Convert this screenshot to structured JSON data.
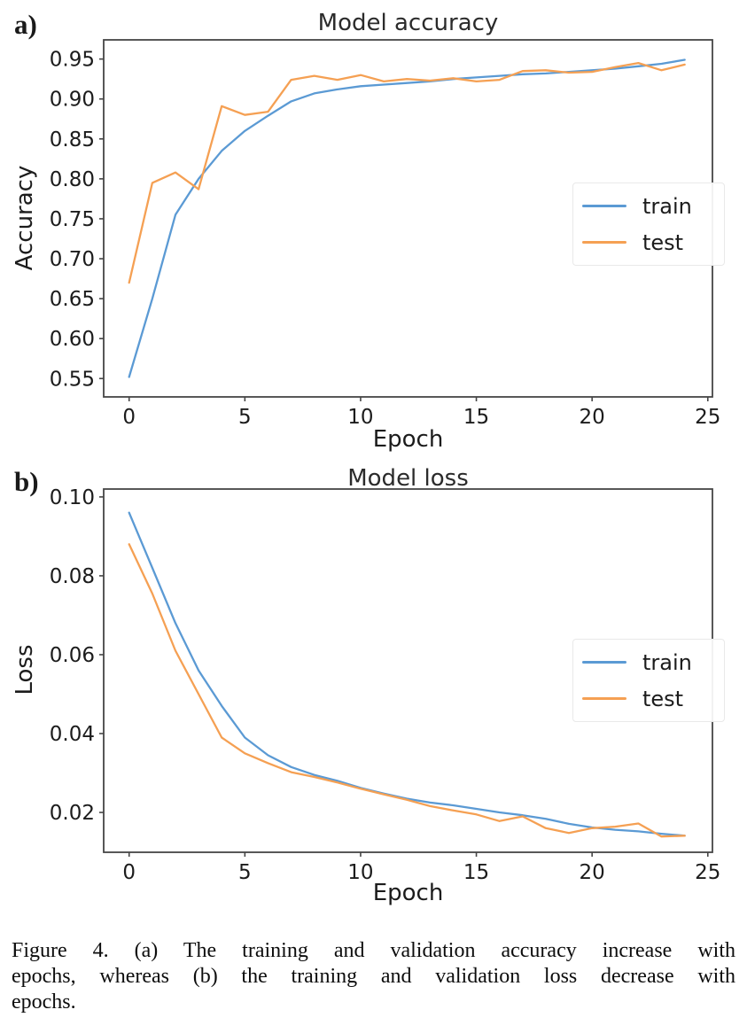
{
  "figure": {
    "panel_a_label": "a)",
    "panel_b_label": "b)"
  },
  "colors": {
    "train_line": "#5b9ad4",
    "test_line": "#f5a053",
    "spine": "#454545",
    "tick_text": "#1c1c1c"
  },
  "chart_data": [
    {
      "type": "line",
      "title": "Model accuracy",
      "xlabel": "Epoch",
      "ylabel": "Accuracy",
      "x": [
        0,
        1,
        2,
        3,
        4,
        5,
        6,
        7,
        8,
        9,
        10,
        11,
        12,
        13,
        14,
        15,
        16,
        17,
        18,
        19,
        20,
        21,
        22,
        23,
        24
      ],
      "series": [
        {
          "name": "train",
          "color": "#5b9ad4",
          "values": [
            0.552,
            0.65,
            0.755,
            0.8,
            0.835,
            0.86,
            0.879,
            0.897,
            0.907,
            0.912,
            0.916,
            0.918,
            0.92,
            0.922,
            0.925,
            0.927,
            0.929,
            0.931,
            0.932,
            0.934,
            0.936,
            0.938,
            0.941,
            0.944,
            0.949
          ]
        },
        {
          "name": "test",
          "color": "#f5a053",
          "values": [
            0.67,
            0.795,
            0.808,
            0.787,
            0.891,
            0.88,
            0.884,
            0.924,
            0.929,
            0.924,
            0.93,
            0.922,
            0.925,
            0.923,
            0.926,
            0.922,
            0.924,
            0.935,
            0.936,
            0.933,
            0.934,
            0.94,
            0.945,
            0.936,
            0.943
          ]
        }
      ],
      "xlim": [
        -1.1,
        25.2
      ],
      "ylim": [
        0.527,
        0.974
      ],
      "xticks": [
        0,
        5,
        10,
        15,
        20,
        25
      ],
      "yticks": [
        0.55,
        0.6,
        0.65,
        0.7,
        0.75,
        0.8,
        0.85,
        0.9,
        0.95
      ],
      "ytick_decimals": 2,
      "grid": false,
      "legend": {
        "position": "center-right",
        "entries": [
          "train",
          "test"
        ]
      }
    },
    {
      "type": "line",
      "title": "Model loss",
      "xlabel": "Epoch",
      "ylabel": "Loss",
      "x": [
        0,
        1,
        2,
        3,
        4,
        5,
        6,
        7,
        8,
        9,
        10,
        11,
        12,
        13,
        14,
        15,
        16,
        17,
        18,
        19,
        20,
        21,
        22,
        23,
        24
      ],
      "series": [
        {
          "name": "train",
          "color": "#5b9ad4",
          "values": [
            0.096,
            0.082,
            0.068,
            0.056,
            0.047,
            0.039,
            0.0345,
            0.0315,
            0.0295,
            0.028,
            0.0262,
            0.0248,
            0.0235,
            0.0225,
            0.0218,
            0.0209,
            0.02,
            0.0193,
            0.0184,
            0.0171,
            0.0162,
            0.0156,
            0.0152,
            0.0146,
            0.0141
          ]
        },
        {
          "name": "test",
          "color": "#f5a053",
          "values": [
            0.088,
            0.0755,
            0.061,
            0.05,
            0.039,
            0.035,
            0.0325,
            0.0302,
            0.029,
            0.0276,
            0.026,
            0.0246,
            0.0232,
            0.0216,
            0.0205,
            0.0195,
            0.0178,
            0.019,
            0.016,
            0.0148,
            0.016,
            0.0164,
            0.0172,
            0.0139,
            0.0141
          ]
        }
      ],
      "xlim": [
        -1.1,
        25.2
      ],
      "ylim": [
        0.0099,
        0.102
      ],
      "xticks": [
        0,
        5,
        10,
        15,
        20,
        25
      ],
      "yticks": [
        0.02,
        0.04,
        0.06,
        0.08,
        0.1
      ],
      "ytick_decimals": 2,
      "grid": false,
      "legend": {
        "position": "center-right",
        "entries": [
          "train",
          "test"
        ]
      }
    }
  ],
  "caption": {
    "lines": [
      "Figure 4. (a) The training and validation accuracy increase with",
      "epochs, whereas (b) the training and validation loss decrease with",
      "epochs."
    ],
    "text": "Figure 4. (a) The training and validation accuracy increase with epochs, whereas (b) the training and validation loss decrease with epochs."
  }
}
